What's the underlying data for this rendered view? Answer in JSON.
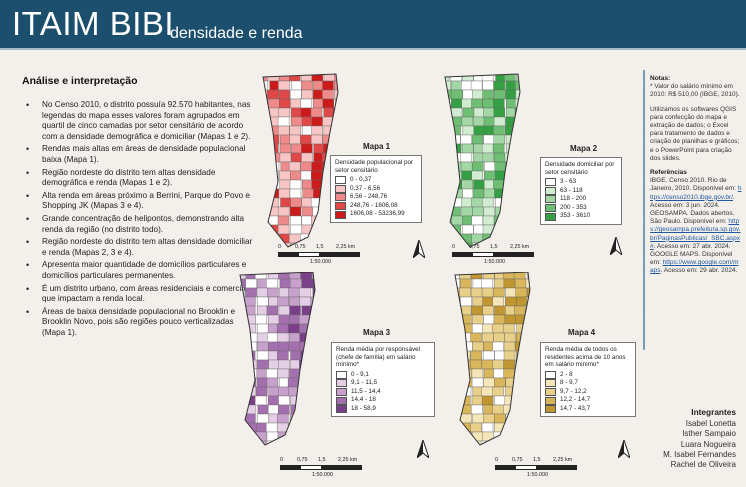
{
  "header": {
    "title": "ITAIM BIBI",
    "subtitle": "densidade e renda",
    "bg_color": "#1c4f6d"
  },
  "analysis": {
    "title": "Análise e interpretação",
    "bullets": [
      "No Censo 2010, o distrito possuía 92.570 habitantes, nas legendas do mapa esses valores foram agrupados em quartil de cinco camadas por setor censitário de acordo com a densidade demográfica e domiciliar (Mapas 1 e 2).",
      "Rendas mais altas em áreas de densidade populacional baixa (Mapa 1).",
      "Região nordeste do distrito  tem altas densidade demográfica e renda (Mapas 1 e 2).",
      "Alta renda em áreas próximo a Berrini, Parque do Povo e Shopping JK (Mapas 3 e 4).",
      "Grande concentração de helipontos, demonstrando alta renda da região (no distrito todo).",
      "Região nordeste do distrito tem altas densidade domiciliar e renda (Mapas 2, 3 e 4).",
      "Apresenta maior quantidade de domicílios particulares e domicílios particulares permanentes.",
      "É um distrito urbano, com áreas residenciais e comerciais que impactam a renda local.",
      "Áreas de baixa densidade populacional no Brooklin e Brooklin Novo, pois são regiões pouco verticalizadas (Mapa 1)."
    ]
  },
  "maps": {
    "map1": {
      "title": "Mapa 1",
      "legend_title": "Densidade populacional por setor censitário",
      "classes": [
        "0 - 0,37",
        "0,37 - 6,56",
        "6,56 - 248,76",
        "248,76 - 1606,08",
        "1606,08 - 53236,99"
      ],
      "colors": [
        "#ffffff",
        "#f8c5c5",
        "#ef8a8a",
        "#e04848",
        "#cc1b1b"
      ]
    },
    "map2": {
      "title": "Mapa 2",
      "legend_title": "Densidade domiciliar por setor censitário",
      "classes": [
        "3 - 63",
        "63 - 118",
        "118 - 200",
        "200 - 353",
        "353 - 3610"
      ],
      "colors": [
        "#ffffff",
        "#d2ecd2",
        "#a3d8a6",
        "#6ebf74",
        "#35a043"
      ]
    },
    "map3": {
      "title": "Mapa 3",
      "legend_title": "Renda média por responsável (chefe de família) em salário mínimo*",
      "classes": [
        "0 - 9,1",
        "9,1 - 11,5",
        "11,5 - 14,4",
        "14,4 - 18",
        "18 - 58,9"
      ],
      "colors": [
        "#ffffff",
        "#e4cfe6",
        "#c7a1cc",
        "#a46fae",
        "#7b3f8a"
      ]
    },
    "map4": {
      "title": "Mapa 4",
      "legend_title": "Renda média de todos os residentes acima de 10 anos em salário mínimo*",
      "classes": [
        "2 - 8",
        "8 - 9,7",
        "9,7 - 12,2",
        "12,2 - 14,7",
        "14,7 - 43,7"
      ],
      "colors": [
        "#ffffff",
        "#f4e6b8",
        "#e9d08a",
        "#d9b65a",
        "#bf9630"
      ]
    },
    "scale": {
      "ticks": [
        "0",
        "0,75",
        "1,5",
        "2,25 km"
      ],
      "ratio": "1:50.000"
    }
  },
  "notes": {
    "title": "Notas:",
    "salary_note": "* Valor do salário mínimo em 2010: R$ 510,00 (IBGE, 2010).",
    "software_note": "Utilizamos os softwares QGIS para confecção do mapa e extração de dados; o Excel para tratamento de dados e criação de planilhas e gráficos; e o PowerPoint para criação dos slides.",
    "references_title": "Referências",
    "ref1_text": "IBGE. Censo 2010. Rio de Janeiro, 2010. Disponível em:",
    "ref1_link": "https://censo2010.ibge.gov.br/",
    "ref1_access": ". Acesso em: 3 jun. 2024.",
    "ref2_text": "GEOSAMPA. Dados abertos. São Paulo. Disponível em:",
    "ref2_link": "https://geosampa.prefeitura.sp.gov.br/PaginasPublicas/_SBC.aspx#",
    "ref2_access": ". Acesso em: 27 abr. 2024.",
    "ref3_text": "GOOGLE MAPS. Disponível em:",
    "ref3_link": "https://www.google.com/maps",
    "ref3_access": ". Acesso em: 29 abr. 2024."
  },
  "team": {
    "title": "Integrantes",
    "members": [
      "Isabel Lonetta",
      "Isther Sampaio",
      "Luara Nogueira",
      "M. Isabel Fernandes",
      "Rachel de Oliveira"
    ]
  }
}
